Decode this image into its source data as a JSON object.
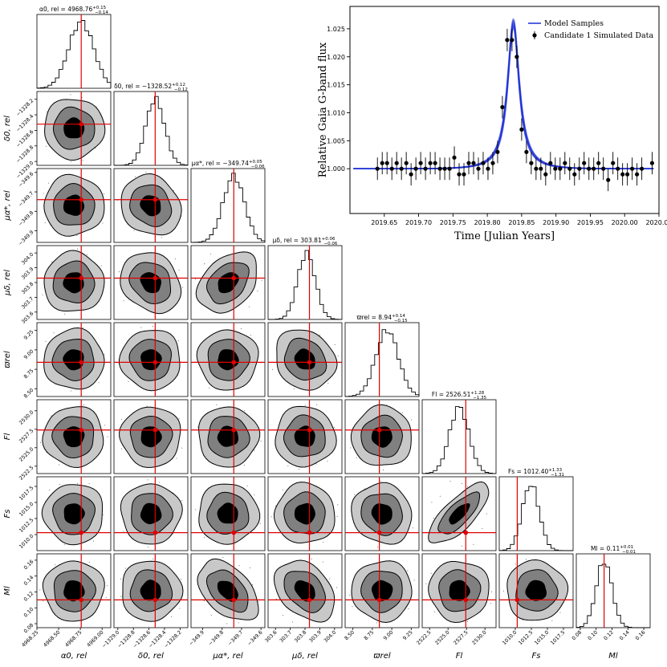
{
  "chart_data": [
    {
      "type": "corner",
      "parameters": [
        {
          "key": "alpha",
          "label": "α0, rel",
          "title": "α0, rel = 4968.76",
          "median": 4968.76,
          "plus": 0.15,
          "minus": 0.14,
          "truth": 4968.76,
          "range": [
            4968.25,
            4969.1
          ],
          "ticks": [
            4968.25,
            4968.5,
            4968.75,
            4969.0
          ],
          "tick_labels": [
            "4968.25",
            "4968.50",
            "4968.75",
            "4969.00"
          ]
        },
        {
          "key": "delta",
          "label": "δ0, rel",
          "title": "δ0, rel = −1328.52",
          "median": -1328.52,
          "plus": 0.12,
          "minus": 0.12,
          "truth": -1328.52,
          "range": [
            -1329.05,
            -1328.1
          ],
          "ticks": [
            -1329.0,
            -1328.8,
            -1328.6,
            -1328.4,
            -1328.2
          ],
          "tick_labels": [
            "−1329.0",
            "−1328.8",
            "−1328.6",
            "−1328.4",
            "−1328.2"
          ]
        },
        {
          "key": "mua",
          "label": "μα*, rel",
          "title": "μα*, rel = −349.74",
          "median": -349.74,
          "plus": 0.05,
          "minus": 0.06,
          "truth": -349.74,
          "range": [
            -349.96,
            -349.58
          ],
          "ticks": [
            -349.9,
            -349.8,
            -349.7,
            -349.6
          ],
          "tick_labels": [
            "−349.9",
            "−349.8",
            "−349.7",
            "−349.6"
          ]
        },
        {
          "key": "mud",
          "label": "μδ, rel",
          "title": "μδ, rel = 303.81",
          "median": 303.81,
          "plus": 0.06,
          "minus": 0.06,
          "truth": 303.83,
          "range": [
            303.55,
            304.05
          ],
          "ticks": [
            303.6,
            303.7,
            303.8,
            303.9,
            304.0
          ],
          "tick_labels": [
            "303.6",
            "303.7",
            "303.8",
            "303.9",
            "304.0"
          ]
        },
        {
          "key": "plx",
          "label": "ϖrel",
          "title": "ϖrel = 8.94",
          "median": 8.94,
          "plus": 0.14,
          "minus": 0.15,
          "truth": 8.84,
          "range": [
            8.4,
            9.35
          ],
          "ticks": [
            8.5,
            8.75,
            9.0,
            9.25
          ],
          "tick_labels": [
            "8.50",
            "8.75",
            "9.00",
            "9.25"
          ]
        },
        {
          "key": "fl",
          "label": "Fl",
          "title": "Fl = 2526.51",
          "median": 2526.51,
          "plus": 1.28,
          "minus": 1.35,
          "truth": 2527.4,
          "range": [
            2521.5,
            2531.5
          ],
          "ticks": [
            2522.5,
            2525.0,
            2527.5,
            2530.0
          ],
          "tick_labels": [
            "2522.5",
            "2525.0",
            "2527.5",
            "2530.0"
          ]
        },
        {
          "key": "fs",
          "label": "Fs",
          "title": "Fs = 1012.40",
          "median": 1012.4,
          "plus": 1.33,
          "minus": 1.31,
          "truth": 1010.3,
          "range": [
            1007.5,
            1019
          ],
          "ticks": [
            1010.0,
            1012.5,
            1015.0,
            1017.5
          ],
          "tick_labels": [
            "1010.0",
            "1012.5",
            "1015.0",
            "1017.5"
          ]
        },
        {
          "key": "ml",
          "label": "Ml",
          "title": "Ml = 0.11",
          "median": 0.11,
          "plus": 0.01,
          "minus": 0.01,
          "truth": 0.11,
          "range": [
            0.075,
            0.168
          ],
          "ticks": [
            0.08,
            0.1,
            0.12,
            0.14,
            0.16
          ],
          "tick_labels": [
            "0.08",
            "0.10",
            "0.12",
            "0.14",
            "0.16"
          ]
        }
      ],
      "correlations": [
        {
          "i": 5,
          "j": 6,
          "rho": 0.75
        },
        {
          "i": 2,
          "j": 7,
          "rho": -0.45
        },
        {
          "i": 3,
          "j": 7,
          "rho": -0.35
        },
        {
          "i": 3,
          "j": 2,
          "rho": 0.35
        },
        {
          "i": 3,
          "j": 1,
          "rho": -0.2
        },
        {
          "i": 2,
          "j": 1,
          "rho": -0.15
        },
        {
          "i": 4,
          "j": 3,
          "rho": -0.15
        },
        {
          "i": 6,
          "j": 4,
          "rho": -0.1
        }
      ],
      "contour_levels": [
        "1σ",
        "2σ",
        "3σ"
      ]
    },
    {
      "type": "scatter",
      "title": "",
      "xlabel": "Time [Julian Years]",
      "ylabel": "Relative Gaia G-band flux",
      "xlim": [
        2019.6,
        2020.05
      ],
      "ylim": [
        0.992,
        1.029
      ],
      "xticks": [
        2019.65,
        2019.7,
        2019.75,
        2019.8,
        2019.85,
        2019.9,
        2019.95,
        2020.0,
        2020.05
      ],
      "xtick_labels": [
        "2019.65",
        "2019.70",
        "2019.75",
        "2019.80",
        "2019.85",
        "2019.90",
        "2019.95",
        "2020.00",
        "2020.05"
      ],
      "yticks": [
        1.0,
        1.005,
        1.01,
        1.015,
        1.02,
        1.025
      ],
      "ytick_labels": [
        "1.000",
        "1.005",
        "1.010",
        "1.015",
        "1.020",
        "1.025"
      ],
      "legend": [
        "Model Samples",
        "Candidate 1 Simulated Data"
      ],
      "legend_position": "top-right",
      "model": {
        "peak_time": 2019.838,
        "peak_flux": 1.026,
        "baseline": 1.0,
        "tE": 0.013
      },
      "series": [
        {
          "name": "Candidate 1 Simulated Data",
          "x": [
            2019.64,
            2019.647,
            2019.654,
            2019.661,
            2019.668,
            2019.675,
            2019.682,
            2019.689,
            2019.696,
            2019.703,
            2019.71,
            2019.717,
            2019.724,
            2019.731,
            2019.738,
            2019.745,
            2019.752,
            2019.759,
            2019.766,
            2019.773,
            2019.78,
            2019.787,
            2019.794,
            2019.801,
            2019.808,
            2019.815,
            2019.822,
            2019.829,
            2019.836,
            2019.843,
            2019.85,
            2019.857,
            2019.864,
            2019.871,
            2019.878,
            2019.885,
            2019.892,
            2019.899,
            2019.906,
            2019.913,
            2019.92,
            2019.927,
            2019.934,
            2019.941,
            2019.948,
            2019.955,
            2019.962,
            2019.969,
            2019.976,
            2019.983,
            2019.99,
            2019.997,
            2020.004,
            2020.011,
            2020.018,
            2020.025,
            2020.04
          ],
          "y": [
            1.0,
            1.001,
            1.001,
            1.0,
            1.001,
            1.0,
            1.001,
            0.999,
            1.0,
            1.001,
            1.0,
            1.001,
            1.001,
            1.0,
            1.0,
            1.0,
            1.002,
            0.999,
            0.999,
            1.001,
            1.001,
            1.0,
            1.001,
            1.0,
            1.001,
            1.003,
            1.011,
            1.023,
            1.023,
            1.02,
            1.007,
            1.003,
            1.001,
            1.0,
            1.0,
            0.999,
            1.001,
            1.0,
            1.0,
            1.001,
            1.0,
            0.999,
            1.0,
            1.001,
            1.0,
            1.0,
            1.001,
            1.0,
            0.998,
            1.001,
            1.0,
            0.999,
            0.999,
            1.0,
            0.999,
            1.0,
            1.001
          ],
          "yerr": 0.002
        }
      ]
    }
  ]
}
